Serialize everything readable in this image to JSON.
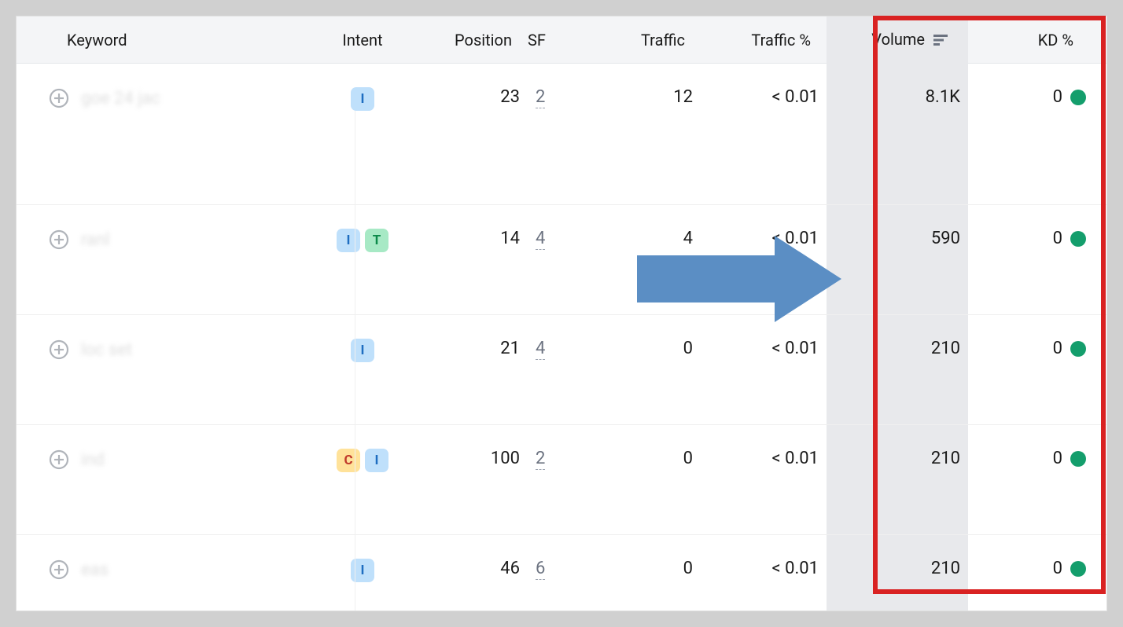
{
  "columns": {
    "keyword": "Keyword",
    "intent": "Intent",
    "position": "Position",
    "sf": "SF",
    "traffic": "Traffic",
    "trafficpct": "Traffic %",
    "volume": "Volume",
    "kd": "KD %"
  },
  "colors": {
    "header_bg": "#f4f5f7",
    "sorted_bg": "#e8e9ec",
    "highlight_border": "#d92222",
    "arrow_fill": "#5b8ec4",
    "kd_dot": "#149e6c",
    "intent_I_bg": "#bfe0fb",
    "intent_I_fg": "#1e6dc0",
    "intent_T_bg": "#a7e9c5",
    "intent_T_fg": "#0c8a4a",
    "intent_C_bg": "#ffe29a",
    "intent_C_fg": "#c03a2b"
  },
  "rows": [
    {
      "keyword": "goe   24\njac",
      "intents": [
        "I"
      ],
      "position": "23",
      "sf": "2",
      "traffic": "12",
      "trafficpct": "< 0.01",
      "volume": "8.1K",
      "kd": "0"
    },
    {
      "keyword": "ranl",
      "intents": [
        "I",
        "T"
      ],
      "position": "14",
      "sf": "4",
      "traffic": "4",
      "trafficpct": "< 0.01",
      "volume": "590",
      "kd": "0"
    },
    {
      "keyword": "loc\nset",
      "intents": [
        "I"
      ],
      "position": "21",
      "sf": "4",
      "traffic": "0",
      "trafficpct": "< 0.01",
      "volume": "210",
      "kd": "0"
    },
    {
      "keyword": "ind",
      "intents": [
        "C",
        "I"
      ],
      "position": "100",
      "sf": "2",
      "traffic": "0",
      "trafficpct": "< 0.01",
      "volume": "210",
      "kd": "0"
    },
    {
      "keyword": "eas",
      "intents": [
        "I"
      ],
      "position": "46",
      "sf": "6",
      "traffic": "0",
      "trafficpct": "< 0.01",
      "volume": "210",
      "kd": "0"
    }
  ]
}
